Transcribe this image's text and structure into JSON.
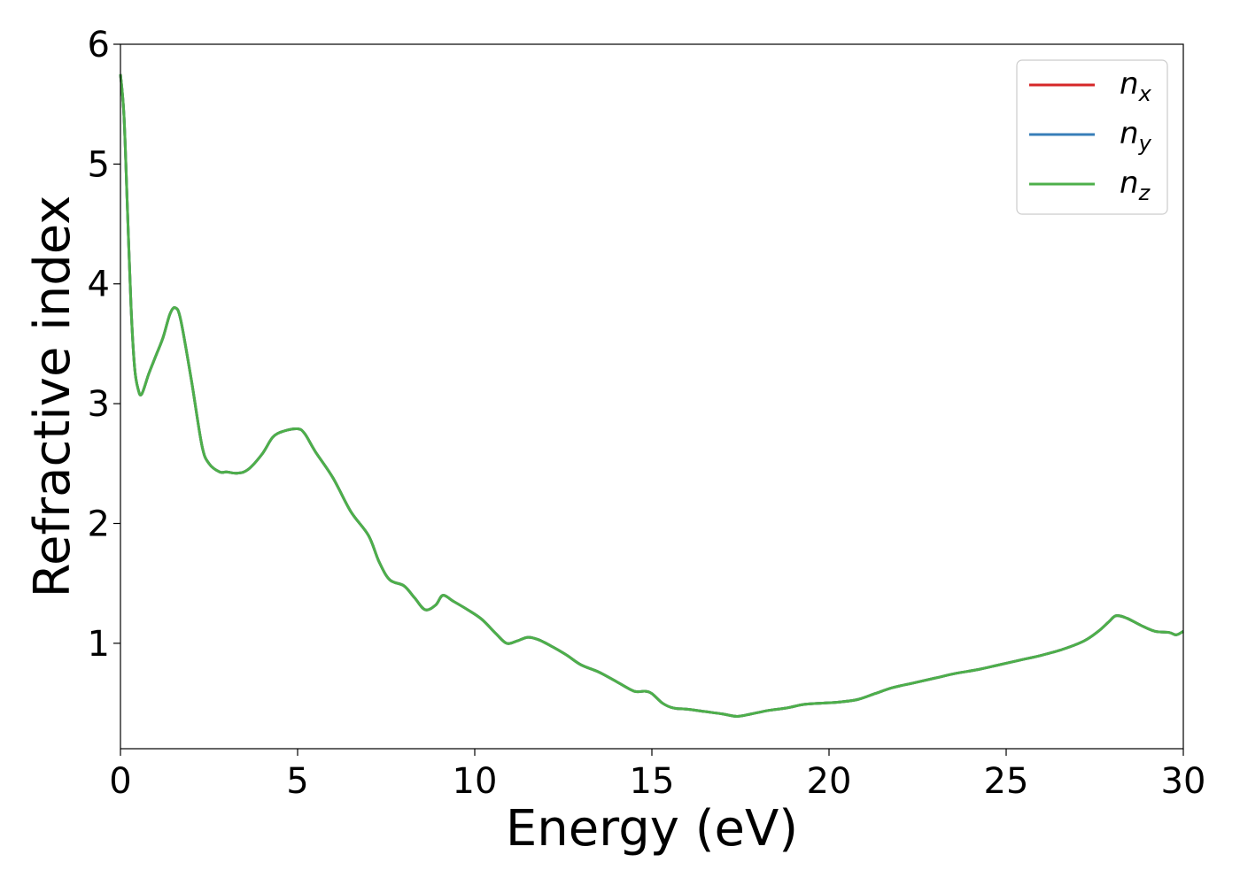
{
  "chart_data": {
    "type": "line",
    "title": "",
    "xlabel": "Energy (eV)",
    "ylabel": "Refractive index",
    "xlim": [
      0,
      30
    ],
    "ylim": [
      0.12,
      6.0
    ],
    "xticks": [
      0,
      5,
      10,
      15,
      20,
      25,
      30
    ],
    "yticks": [
      1,
      2,
      3,
      4,
      5,
      6
    ],
    "grid": false,
    "legend_position": "top-right",
    "series": [
      {
        "name": "n",
        "subscript": "x",
        "color": "#d62728"
      },
      {
        "name": "n",
        "subscript": "y",
        "color": "#377eb8"
      },
      {
        "name": "n",
        "subscript": "z",
        "color": "#4daf4a"
      }
    ],
    "x": [
      0,
      0.1,
      0.2,
      0.3,
      0.4,
      0.5,
      0.6,
      0.8,
      1.0,
      1.2,
      1.4,
      1.55,
      1.7,
      2.0,
      2.3,
      2.5,
      2.8,
      3.0,
      3.3,
      3.6,
      4.0,
      4.3,
      4.6,
      5.0,
      5.2,
      5.5,
      6.0,
      6.5,
      7.0,
      7.3,
      7.6,
      8.0,
      8.3,
      8.6,
      8.9,
      9.1,
      9.4,
      9.8,
      10.2,
      10.6,
      10.9,
      11.2,
      11.5,
      11.8,
      12.2,
      12.6,
      13.0,
      13.5,
      14.0,
      14.5,
      14.8,
      15.0,
      15.3,
      15.6,
      16.0,
      16.5,
      17.0,
      17.4,
      17.8,
      18.3,
      18.8,
      19.3,
      19.8,
      20.3,
      20.8,
      21.3,
      21.8,
      22.4,
      23.0,
      23.6,
      24.2,
      24.8,
      25.4,
      26.0,
      26.6,
      27.2,
      27.6,
      27.9,
      28.1,
      28.4,
      28.8,
      29.2,
      29.6,
      29.8,
      30.0
    ],
    "values": [
      5.75,
      5.4,
      4.6,
      3.8,
      3.3,
      3.12,
      3.08,
      3.25,
      3.4,
      3.55,
      3.75,
      3.8,
      3.7,
      3.2,
      2.65,
      2.5,
      2.43,
      2.43,
      2.42,
      2.45,
      2.58,
      2.72,
      2.77,
      2.79,
      2.75,
      2.6,
      2.38,
      2.1,
      1.9,
      1.68,
      1.53,
      1.48,
      1.38,
      1.28,
      1.32,
      1.4,
      1.35,
      1.28,
      1.2,
      1.08,
      1.0,
      1.02,
      1.05,
      1.03,
      0.97,
      0.9,
      0.82,
      0.76,
      0.68,
      0.6,
      0.6,
      0.58,
      0.5,
      0.46,
      0.45,
      0.43,
      0.41,
      0.39,
      0.41,
      0.44,
      0.46,
      0.49,
      0.5,
      0.51,
      0.53,
      0.58,
      0.63,
      0.67,
      0.71,
      0.75,
      0.78,
      0.82,
      0.86,
      0.9,
      0.95,
      1.02,
      1.1,
      1.18,
      1.23,
      1.21,
      1.15,
      1.1,
      1.09,
      1.07,
      1.1
    ]
  }
}
